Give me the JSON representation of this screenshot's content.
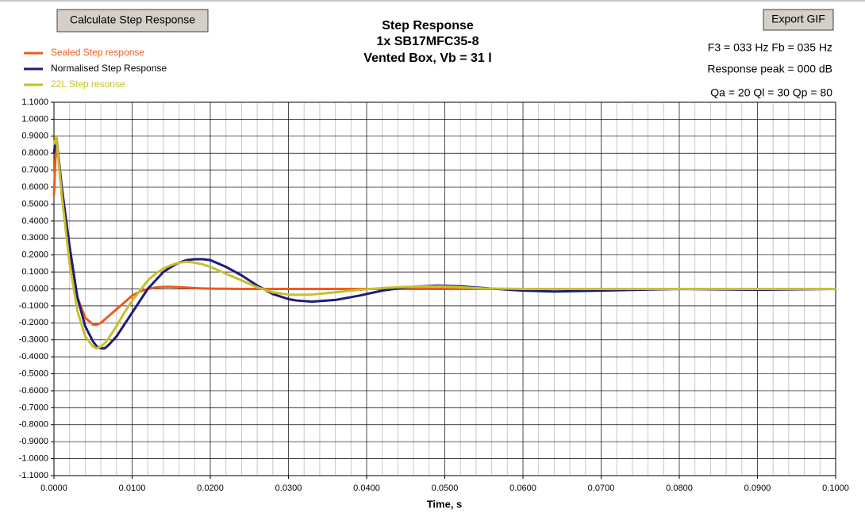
{
  "buttons": [
    "Calculate Step Response",
    "Export GIF"
  ],
  "info": [
    "F3 = 033 Hz  Fb = 035 Hz",
    "Response peak = 000 dB",
    "Qa = 20  Ql = 30  Qp = 80"
  ],
  "chart_data": {
    "type": "line",
    "title": "Step Response",
    "subtitle": [
      "1x SB17MFC35-8",
      "Vented Box, Vb = 31 l"
    ],
    "x_label": "Time, s",
    "grid": true,
    "legend": "top-left",
    "x": [
      0,
      0.0003,
      0.001,
      0.002,
      0.003,
      0.004,
      0.005,
      0.0055,
      0.006,
      0.0065,
      0.007,
      0.008,
      0.009,
      0.01,
      0.011,
      0.012,
      0.013,
      0.014,
      0.015,
      0.016,
      0.017,
      0.018,
      0.019,
      0.02,
      0.021,
      0.022,
      0.024,
      0.026,
      0.028,
      0.03,
      0.031,
      0.033,
      0.036,
      0.039,
      0.042,
      0.045,
      0.049,
      0.052,
      0.055,
      0.06,
      0.064,
      0.07,
      0.08,
      0.09,
      0.1
    ],
    "series": [
      {
        "name": "Sealed Step response",
        "color": "#f05a1e",
        "values": [
          0.55,
          0.9,
          0.55,
          0.2,
          -0.05,
          -0.17,
          -0.21,
          -0.21,
          -0.2,
          -0.18,
          -0.16,
          -0.12,
          -0.08,
          -0.04,
          -0.015,
          0,
          0.008,
          0.012,
          0.012,
          0.01,
          0.008,
          0.005,
          0.003,
          0.002,
          0.001,
          0.001,
          0,
          0,
          0,
          0,
          0,
          0,
          0,
          0,
          0,
          0,
          0,
          0,
          0,
          0,
          0,
          0,
          0,
          0,
          0
        ]
      },
      {
        "name": "Normalised Step Response",
        "color": "#1c1c7a",
        "values": [
          0.8,
          0.9,
          0.6,
          0.25,
          -0.05,
          -0.22,
          -0.31,
          -0.34,
          -0.35,
          -0.35,
          -0.33,
          -0.28,
          -0.21,
          -0.14,
          -0.07,
          0,
          0.05,
          0.1,
          0.13,
          0.155,
          0.17,
          0.175,
          0.175,
          0.17,
          0.15,
          0.13,
          0.08,
          0.02,
          -0.03,
          -0.06,
          -0.068,
          -0.075,
          -0.065,
          -0.04,
          -0.01,
          0.01,
          0.02,
          0.015,
          0.005,
          -0.01,
          -0.015,
          -0.01,
          0,
          -0.005,
          0
        ]
      },
      {
        "name": "22L Step resonse",
        "color": "#c8bf2a",
        "values": [
          0.85,
          0.9,
          0.55,
          0.15,
          -0.13,
          -0.28,
          -0.34,
          -0.35,
          -0.34,
          -0.32,
          -0.29,
          -0.22,
          -0.14,
          -0.07,
          -0.01,
          0.05,
          0.09,
          0.12,
          0.14,
          0.155,
          0.16,
          0.155,
          0.145,
          0.13,
          0.11,
          0.09,
          0.05,
          0.01,
          -0.02,
          -0.033,
          -0.035,
          -0.033,
          -0.02,
          -0.005,
          0.005,
          0.012,
          0.015,
          0.01,
          0.003,
          0,
          0,
          0,
          0,
          0,
          0
        ]
      }
    ],
    "xlim": [
      0,
      0.1
    ],
    "xticks": [
      {
        "value": 0,
        "label": "0.0000"
      },
      {
        "value": 0.01,
        "label": "0.0100"
      },
      {
        "value": 0.02,
        "label": "0.0200"
      },
      {
        "value": 0.03,
        "label": "0.0300"
      },
      {
        "value": 0.04,
        "label": "0.0400"
      },
      {
        "value": 0.05,
        "label": "0.0500"
      },
      {
        "value": 0.06,
        "label": "0.0600"
      },
      {
        "value": 0.07,
        "label": "0.0700"
      },
      {
        "value": 0.08,
        "label": "0.0800"
      },
      {
        "value": 0.09,
        "label": "0.0900"
      },
      {
        "value": 0.1,
        "label": "0.1000"
      }
    ],
    "xminorticks": [
      0.002,
      0.004,
      0.006,
      0.008,
      0.012,
      0.014,
      0.016,
      0.018,
      0.022,
      0.024,
      0.026,
      0.028,
      0.032,
      0.034,
      0.036,
      0.038,
      0.042,
      0.044,
      0.046,
      0.048,
      0.052,
      0.054,
      0.056,
      0.058,
      0.062,
      0.064,
      0.066,
      0.068,
      0.072,
      0.074,
      0.076,
      0.078,
      0.082,
      0.084,
      0.086,
      0.088,
      0.092,
      0.094,
      0.096,
      0.098
    ],
    "ylim": [
      -1.1,
      1.1
    ],
    "yticks": [
      {
        "value": 1.1,
        "label": "1.1000"
      },
      {
        "value": 1,
        "label": "1.0000"
      },
      {
        "value": 0.9,
        "label": "0.9000"
      },
      {
        "value": 0.8,
        "label": "0.8000"
      },
      {
        "value": 0.7,
        "label": "0.7000"
      },
      {
        "value": 0.6,
        "label": "0.6000"
      },
      {
        "value": 0.5,
        "label": "0.5000"
      },
      {
        "value": 0.4,
        "label": "0.4000"
      },
      {
        "value": 0.3,
        "label": "0.3000"
      },
      {
        "value": 0.2,
        "label": "0.2000"
      },
      {
        "value": 0.1,
        "label": "0.1000"
      },
      {
        "value": 0,
        "label": "0.0000"
      },
      {
        "value": -0.1,
        "label": "-0.1000"
      },
      {
        "value": -0.2,
        "label": "-0.2000"
      },
      {
        "value": -0.3,
        "label": "-0.3000"
      },
      {
        "value": -0.4,
        "label": "-0.4000"
      },
      {
        "value": -0.5,
        "label": "-0.5000"
      },
      {
        "value": -0.6,
        "label": "-0.6000"
      },
      {
        "value": -0.7,
        "label": "-0.7000"
      },
      {
        "value": -0.8,
        "label": "-0.8000"
      },
      {
        "value": -0.9,
        "label": "-0.9000"
      },
      {
        "value": -1,
        "label": "-1.0000"
      },
      {
        "value": -1.1,
        "label": "-1.1000"
      }
    ]
  }
}
